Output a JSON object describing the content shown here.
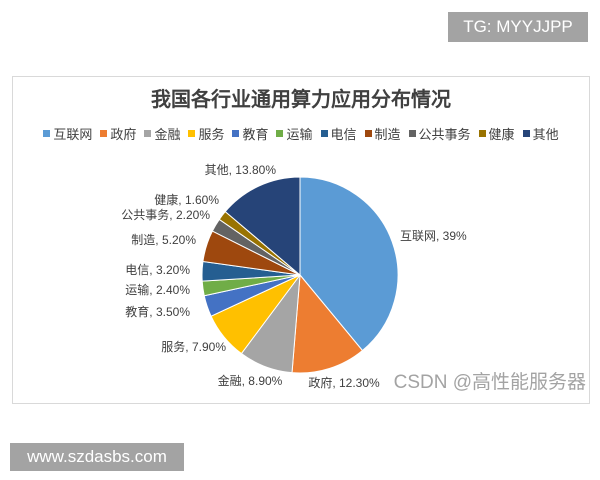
{
  "watermarks": {
    "tg": "TG: MYYJJPP",
    "site": "www.szdasbs.com",
    "csdn": "CSDN @高性能服务器"
  },
  "chart_data": {
    "type": "pie",
    "title": "我国各行业通用算力应用分布情况",
    "legend": "top",
    "categories": [
      "互联网",
      "政府",
      "金融",
      "服务",
      "教育",
      "运输",
      "电信",
      "制造",
      "公共事务",
      "健康",
      "其他"
    ],
    "values": [
      39,
      12.3,
      8.9,
      7.9,
      3.5,
      2.4,
      3.2,
      5.2,
      2.2,
      1.6,
      13.8
    ],
    "data_labels": [
      "互联网, 39%",
      "政府, 12.30%",
      "金融, 8.90%",
      "服务, 7.90%",
      "教育, 3.50%",
      "运输, 2.40%",
      "电信, 3.20%",
      "制造, 5.20%",
      "公共事务, 2.20%",
      "健康, 1.60%",
      "其他, 13.80%"
    ],
    "colors": [
      "#5B9BD5",
      "#ED7D31",
      "#A5A5A5",
      "#FFC000",
      "#4472C4",
      "#70AD47",
      "#255E91",
      "#9E480E",
      "#636363",
      "#997300",
      "#264478"
    ]
  }
}
